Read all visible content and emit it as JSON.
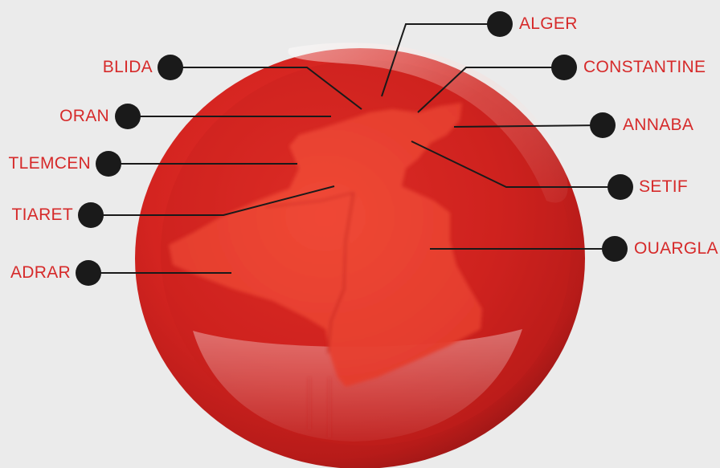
{
  "colors": {
    "background": "#ebebeb",
    "label_text": "#d62a2a",
    "marker": "#1a1a1a",
    "sphere": "#d8231f",
    "map": "#ee4634"
  },
  "cities": [
    {
      "id": "alger",
      "name": "ALGER"
    },
    {
      "id": "constantine",
      "name": "CONSTANTINE"
    },
    {
      "id": "annaba",
      "name": "ANNABA"
    },
    {
      "id": "setif",
      "name": "SETIF"
    },
    {
      "id": "ouargla",
      "name": "OUARGLA"
    },
    {
      "id": "blida",
      "name": "BLIDA"
    },
    {
      "id": "oran",
      "name": "ORAN"
    },
    {
      "id": "tlemcen",
      "name": "TLEMCEN"
    },
    {
      "id": "tiaret",
      "name": "TIARET"
    },
    {
      "id": "adrar",
      "name": "ADRAR"
    }
  ]
}
